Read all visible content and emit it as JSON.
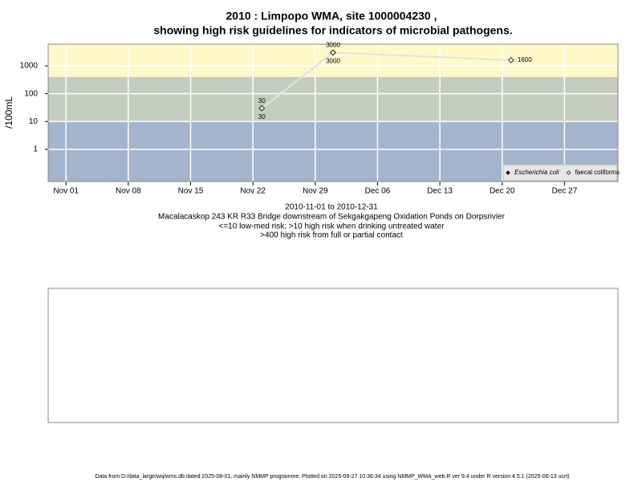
{
  "chart_data": {
    "type": "line",
    "title": [
      "2010 : Limpopo WMA, site 1000004230 ,",
      "showing high risk guidelines for indicators of microbial pathogens."
    ],
    "y_label": "/100mL",
    "log_y": true,
    "grid": true,
    "ylim": [
      0.07,
      6000
    ],
    "yticks": [
      1,
      10,
      100,
      1000
    ],
    "xlim": [
      "2010-10-30",
      "2011-01-02"
    ],
    "xticks": [
      {
        "value": "2010-11-01",
        "label": "Nov 01"
      },
      {
        "value": "2010-11-08",
        "label": "Nov 08"
      },
      {
        "value": "2010-11-15",
        "label": "Nov 15"
      },
      {
        "value": "2010-11-22",
        "label": "Nov 22"
      },
      {
        "value": "2010-11-29",
        "label": "Nov 29"
      },
      {
        "value": "2010-12-06",
        "label": "Dec 06"
      },
      {
        "value": "2010-12-13",
        "label": "Dec 13"
      },
      {
        "value": "2010-12-20",
        "label": "Dec 20"
      },
      {
        "value": "2010-12-27",
        "label": "Dec 27"
      }
    ],
    "band_edges": [
      10,
      400
    ],
    "band_colors": [
      "#a3b4cc",
      "#c6ccbf",
      "#fff8c8"
    ],
    "legend_position": "bottom-right",
    "series": [
      {
        "name": "Escherichia coli",
        "color": "#000000",
        "marker_fill": "#000000",
        "x": [
          "2010-11-23",
          "2010-12-01"
        ],
        "values": [
          30,
          3000
        ]
      },
      {
        "name": "faecal coliforms",
        "color": "#000000",
        "marker_fill": "#ffffff",
        "x": [
          "2010-11-23",
          "2010-12-01",
          "2010-12-21"
        ],
        "values": [
          30,
          3000,
          1600
        ]
      }
    ],
    "notes": [
      "2010-11-01 to 2010-12-31",
      "Macalacaskop 243 KR R33 Bridge downstream of Sekgakgapeng Oxidation Ponds on Dorpsrivier",
      "<=10 low-med risk; >10 high risk when drinking untreated water",
      ">400 high risk from full or partial contact"
    ],
    "footer": "Data from D:/data_large/wq/wms.db dated 2025-08-01, mainly NMMP programme. Plotted on 2025-09-27 10:36:34 using NMMP_WMA_web.R ver 9.4 under R version 4.5.1 (2025-06-13 ucrt)"
  }
}
